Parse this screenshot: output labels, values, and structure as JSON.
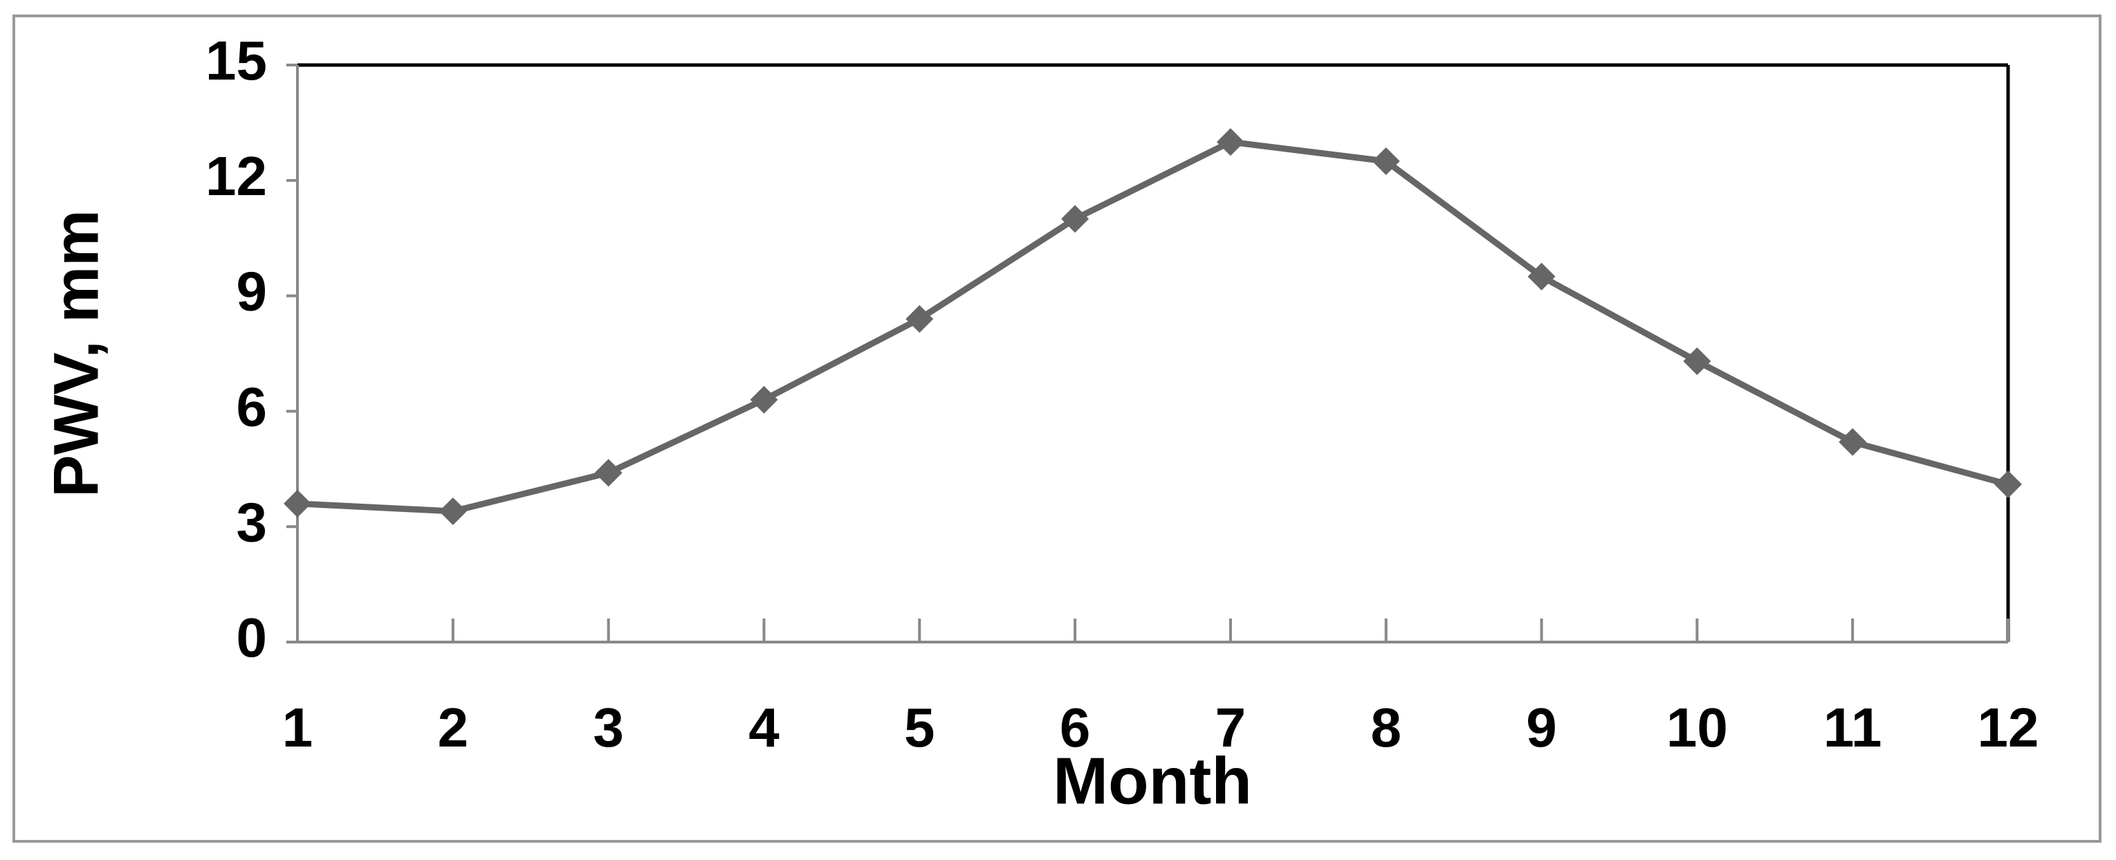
{
  "chart_data": {
    "type": "line",
    "x": [
      1,
      2,
      3,
      4,
      5,
      6,
      7,
      8,
      9,
      10,
      11,
      12
    ],
    "series": [
      {
        "color": "#666666",
        "values": [
          3.6,
          3.4,
          4.4,
          6.3,
          8.4,
          11.0,
          13.0,
          12.5,
          9.5,
          7.3,
          5.2,
          4.1
        ]
      }
    ],
    "xlabel": "Month",
    "ylabel": "PWV, mm",
    "xlim": [
      1,
      12
    ],
    "xticks": [
      1,
      2,
      3,
      4,
      5,
      6,
      7,
      8,
      9,
      10,
      11,
      12
    ],
    "ylim": [
      0,
      15
    ],
    "yticks": [
      0,
      3,
      6,
      9,
      12,
      15
    ],
    "grid": false
  }
}
